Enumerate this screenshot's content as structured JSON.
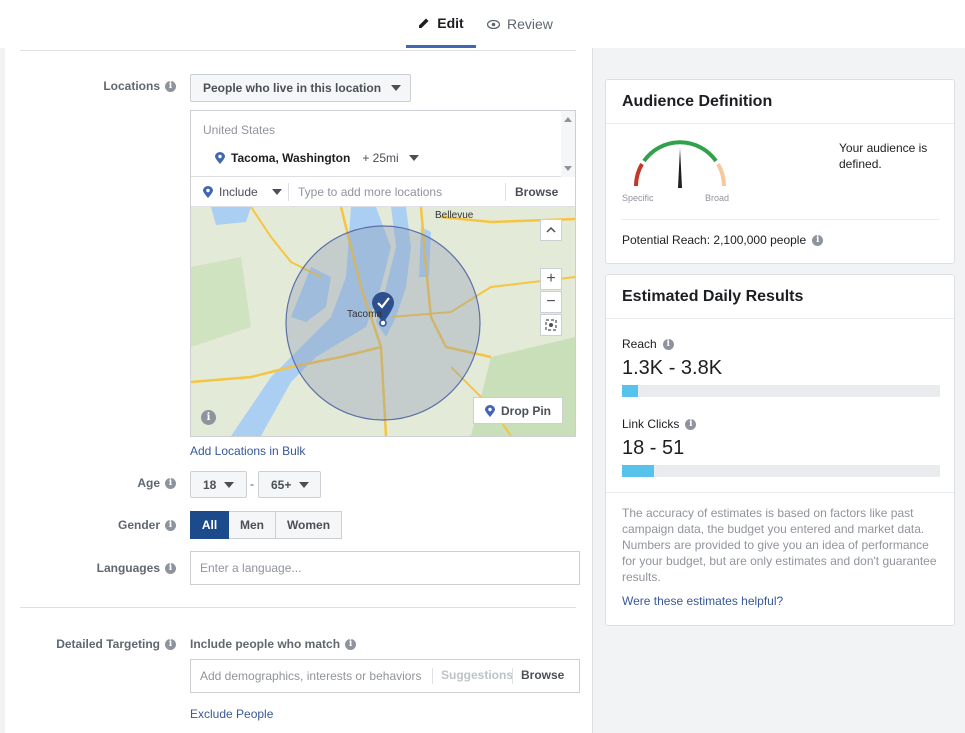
{
  "tabs": {
    "edit": "Edit",
    "review": "Review"
  },
  "locations": {
    "label": "Locations",
    "type_dropdown": "People who live in this location",
    "country": "United States",
    "selected_city": "Tacoma, Washington",
    "radius": "+ 25mi",
    "include_label": "Include",
    "search_placeholder": "Type to add more locations",
    "browse": "Browse",
    "map_city_label": "Tacoma",
    "map_city_label_2": "Bellevue",
    "drop_pin": "Drop Pin",
    "add_bulk": "Add Locations in Bulk"
  },
  "age": {
    "label": "Age",
    "min": "18",
    "separator": "-",
    "max": "65+"
  },
  "gender": {
    "label": "Gender",
    "options": [
      "All",
      "Men",
      "Women"
    ],
    "selected": "All"
  },
  "languages": {
    "label": "Languages",
    "placeholder": "Enter a language..."
  },
  "detailed_targeting": {
    "label": "Detailed Targeting",
    "include_label": "Include people who match",
    "placeholder": "Add demographics, interests or behaviors",
    "suggestions": "Suggestions",
    "browse": "Browse",
    "exclude": "Exclude People"
  },
  "audience_definition": {
    "title": "Audience Definition",
    "gauge_low": "Specific",
    "gauge_high": "Broad",
    "status": "Your audience is defined.",
    "potential_reach": "Potential Reach: 2,100,000 people"
  },
  "estimated_results": {
    "title": "Estimated Daily Results",
    "reach_label": "Reach",
    "reach_value": "1.3K - 3.8K",
    "reach_fill_fraction": 0.05,
    "clicks_label": "Link Clicks",
    "clicks_value": "18 - 51",
    "clicks_fill_fraction": 0.1,
    "disclaimer": "The accuracy of estimates is based on factors like past campaign data, the budget you entered and market data. Numbers are provided to give you an idea of performance for your budget, but are only estimates and don't guarantee results.",
    "feedback_link": "Were these estimates helpful?"
  },
  "colors": {
    "accent": "#4267b2",
    "active_segment": "#1d4a8a",
    "bar": "#57c3ea",
    "gauge_green": "#31a24c",
    "gauge_red": "#c0392b",
    "gauge_orange": "#f5c99b"
  }
}
